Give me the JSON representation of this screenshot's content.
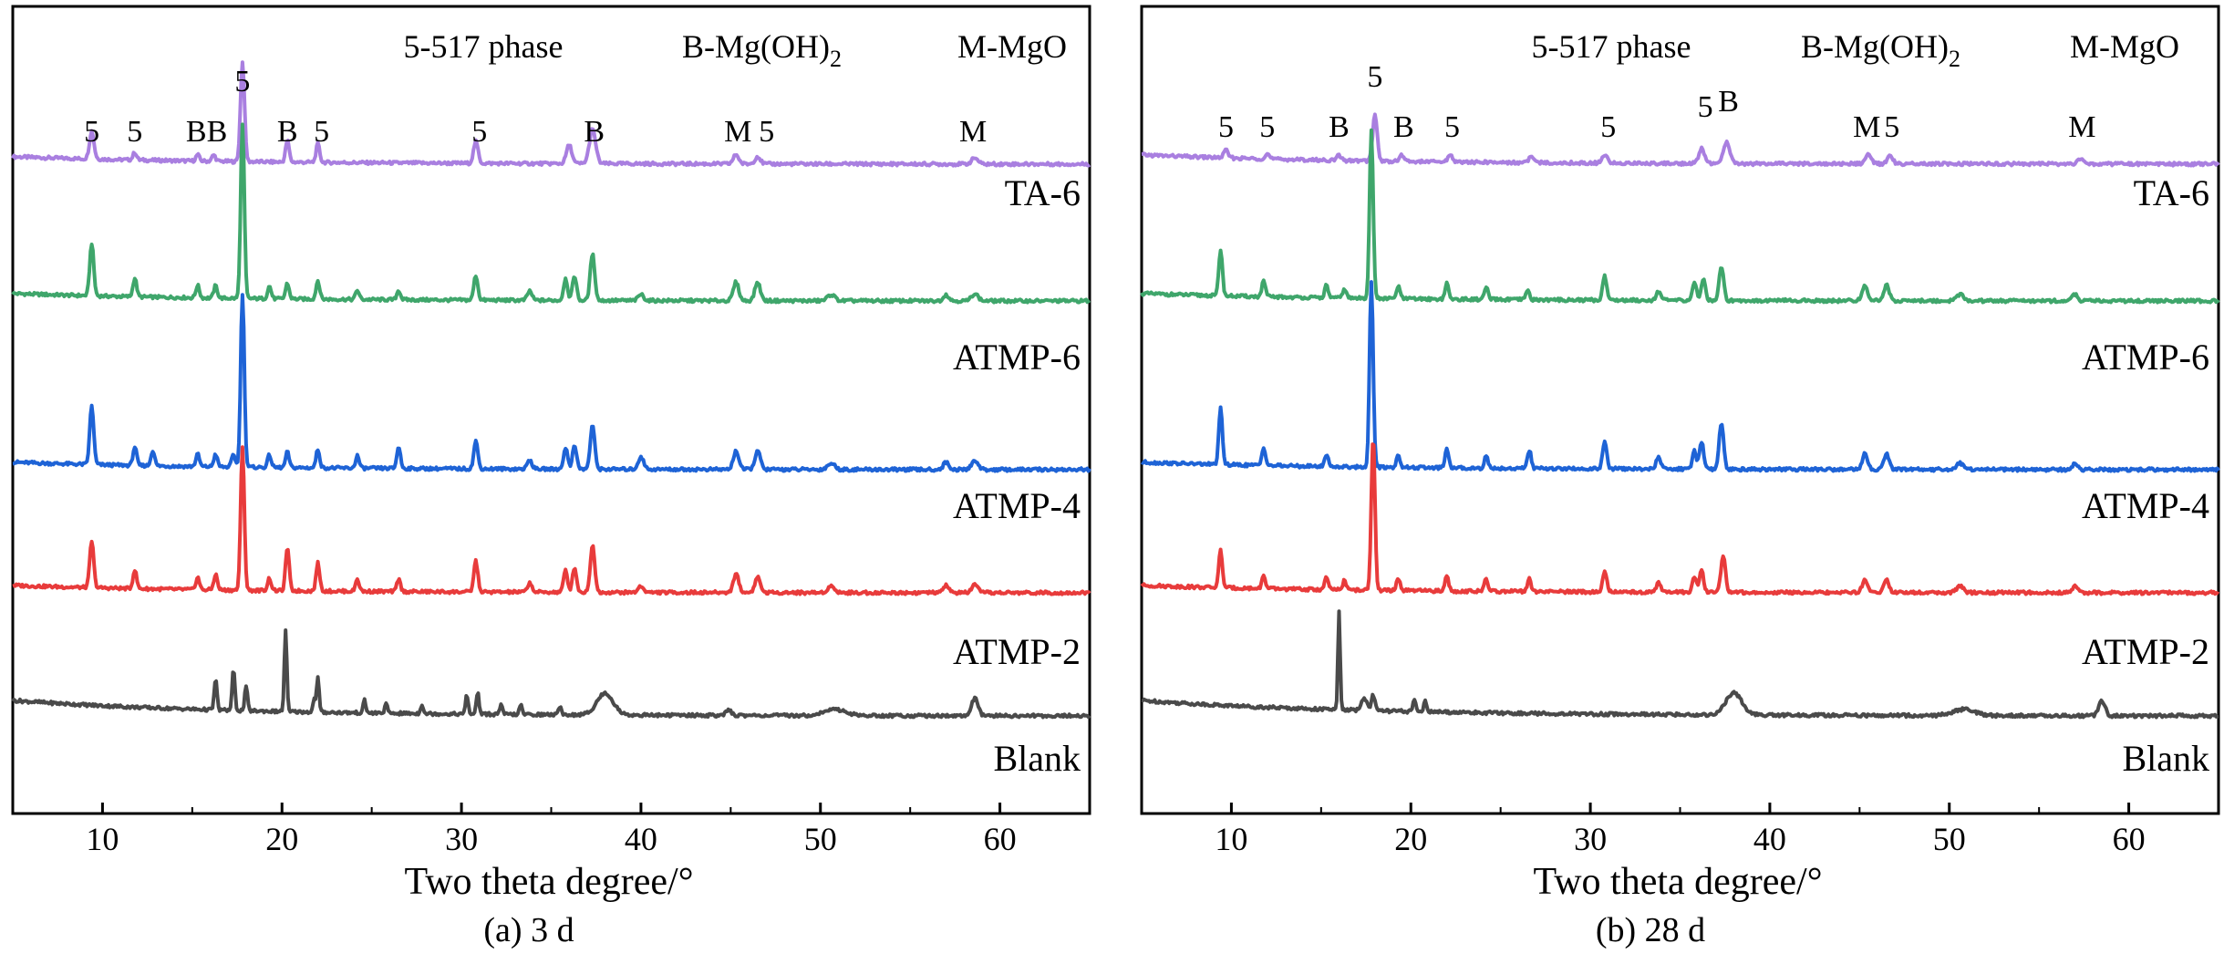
{
  "figure": {
    "panel_a_caption": "(a) 3 d",
    "panel_b_caption": "(b) 28 d",
    "xlabel": "Two theta degree/°",
    "legend": {
      "phase5": "5-517 phase",
      "brucite": "B-Mg(OH)",
      "brucite_sub": "2",
      "periclase": "M-MgO"
    }
  },
  "colors": {
    "TA-6": "#A97FE0",
    "ATMP-6": "#3FA66B",
    "ATMP-4": "#1E63D6",
    "ATMP-2": "#E83B3B",
    "Blank": "#4A4A4A"
  },
  "chart_data": [
    {
      "type": "line",
      "title": "(a) 3 d",
      "xlabel": "Two theta degree/°",
      "ylabel": "",
      "xlim": [
        5,
        65
      ],
      "xticks": [
        10,
        20,
        30,
        40,
        50,
        60
      ],
      "series": [
        {
          "name": "TA-6",
          "baseline": 4.2,
          "tilt": 0.12,
          "noise": 0.05,
          "peaks": [
            [
              9.4,
              0.45,
              0.25
            ],
            [
              11.8,
              0.12,
              0.2
            ],
            [
              15.3,
              0.1,
              0.2
            ],
            [
              16.2,
              0.1,
              0.2
            ],
            [
              17.8,
              1.6,
              0.22
            ],
            [
              20.3,
              0.35,
              0.2
            ],
            [
              22.0,
              0.3,
              0.2
            ],
            [
              30.8,
              0.35,
              0.25
            ],
            [
              36.0,
              0.3,
              0.3
            ],
            [
              37.3,
              0.55,
              0.35
            ],
            [
              45.3,
              0.15,
              0.3
            ],
            [
              46.5,
              0.12,
              0.3
            ],
            [
              58.6,
              0.1,
              0.35
            ]
          ]
        },
        {
          "name": "ATMP-6",
          "baseline": 3.05,
          "tilt": 0.12,
          "noise": 0.05,
          "peaks": [
            [
              9.4,
              0.85,
              0.22
            ],
            [
              11.8,
              0.3,
              0.2
            ],
            [
              15.3,
              0.2,
              0.2
            ],
            [
              16.3,
              0.2,
              0.2
            ],
            [
              17.8,
              2.8,
              0.2
            ],
            [
              19.3,
              0.2,
              0.2
            ],
            [
              20.3,
              0.25,
              0.2
            ],
            [
              22.0,
              0.3,
              0.2
            ],
            [
              24.2,
              0.15,
              0.2
            ],
            [
              26.5,
              0.15,
              0.2
            ],
            [
              30.8,
              0.4,
              0.22
            ],
            [
              33.8,
              0.15,
              0.25
            ],
            [
              35.8,
              0.35,
              0.22
            ],
            [
              36.3,
              0.4,
              0.22
            ],
            [
              37.3,
              0.75,
              0.25
            ],
            [
              40.0,
              0.1,
              0.3
            ],
            [
              45.3,
              0.3,
              0.3
            ],
            [
              46.5,
              0.3,
              0.3
            ],
            [
              50.6,
              0.1,
              0.4
            ],
            [
              57.0,
              0.1,
              0.3
            ],
            [
              58.6,
              0.12,
              0.35
            ]
          ]
        },
        {
          "name": "ATMP-4",
          "baseline": 1.95,
          "tilt": 0.12,
          "noise": 0.05,
          "peaks": [
            [
              9.4,
              0.95,
              0.22
            ],
            [
              11.8,
              0.3,
              0.2
            ],
            [
              12.8,
              0.25,
              0.2
            ],
            [
              15.3,
              0.2,
              0.2
            ],
            [
              16.3,
              0.2,
              0.2
            ],
            [
              17.3,
              0.2,
              0.2
            ],
            [
              17.8,
              2.8,
              0.2
            ],
            [
              19.3,
              0.2,
              0.2
            ],
            [
              20.3,
              0.25,
              0.2
            ],
            [
              22.0,
              0.3,
              0.2
            ],
            [
              24.2,
              0.2,
              0.2
            ],
            [
              26.5,
              0.35,
              0.2
            ],
            [
              30.8,
              0.45,
              0.22
            ],
            [
              33.8,
              0.15,
              0.25
            ],
            [
              35.8,
              0.35,
              0.22
            ],
            [
              36.3,
              0.4,
              0.22
            ],
            [
              37.3,
              0.7,
              0.25
            ],
            [
              40.0,
              0.2,
              0.3
            ],
            [
              45.3,
              0.3,
              0.3
            ],
            [
              46.5,
              0.3,
              0.3
            ],
            [
              50.6,
              0.1,
              0.4
            ],
            [
              57.0,
              0.12,
              0.3
            ],
            [
              58.6,
              0.15,
              0.35
            ]
          ]
        },
        {
          "name": "ATMP-2",
          "baseline": 0.85,
          "tilt": 0.12,
          "noise": 0.05,
          "peaks": [
            [
              9.4,
              0.75,
              0.22
            ],
            [
              11.8,
              0.3,
              0.2
            ],
            [
              15.3,
              0.2,
              0.2
            ],
            [
              16.3,
              0.25,
              0.2
            ],
            [
              17.8,
              2.3,
              0.2
            ],
            [
              19.3,
              0.2,
              0.2
            ],
            [
              20.3,
              0.7,
              0.2
            ],
            [
              22.0,
              0.45,
              0.2
            ],
            [
              24.2,
              0.2,
              0.2
            ],
            [
              26.5,
              0.2,
              0.2
            ],
            [
              30.8,
              0.5,
              0.22
            ],
            [
              33.8,
              0.15,
              0.25
            ],
            [
              35.8,
              0.35,
              0.22
            ],
            [
              36.3,
              0.4,
              0.22
            ],
            [
              37.3,
              0.75,
              0.25
            ],
            [
              40.0,
              0.1,
              0.3
            ],
            [
              45.3,
              0.3,
              0.3
            ],
            [
              46.5,
              0.25,
              0.3
            ],
            [
              50.6,
              0.1,
              0.4
            ],
            [
              57.0,
              0.12,
              0.3
            ],
            [
              58.6,
              0.12,
              0.35
            ]
          ]
        },
        {
          "name": "Blank",
          "baseline": -0.25,
          "tilt": 0.25,
          "noise": 0.05,
          "peaks": [
            [
              16.3,
              0.5,
              0.15
            ],
            [
              17.3,
              0.65,
              0.15
            ],
            [
              18.0,
              0.4,
              0.15
            ],
            [
              20.2,
              1.3,
              0.14
            ],
            [
              21.8,
              0.2,
              0.15
            ],
            [
              22.0,
              0.55,
              0.14
            ],
            [
              24.6,
              0.2,
              0.15
            ],
            [
              25.8,
              0.15,
              0.15
            ],
            [
              27.8,
              0.15,
              0.15
            ],
            [
              30.3,
              0.3,
              0.15
            ],
            [
              30.9,
              0.35,
              0.15
            ],
            [
              32.2,
              0.15,
              0.15
            ],
            [
              33.3,
              0.15,
              0.15
            ],
            [
              35.5,
              0.15,
              0.15
            ],
            [
              38.0,
              0.35,
              0.9
            ],
            [
              44.9,
              0.08,
              0.3
            ],
            [
              50.8,
              0.1,
              1.2
            ],
            [
              58.6,
              0.28,
              0.35
            ]
          ]
        }
      ],
      "trace_labels": [
        "TA-6",
        "ATMP-6",
        "ATMP-4",
        "ATMP-2",
        "Blank"
      ],
      "annotations": [
        {
          "text": "5",
          "x": 9.4
        },
        {
          "text": "5",
          "x": 11.8
        },
        {
          "text": "BB",
          "x": 15.8
        },
        {
          "text": "5",
          "x": 17.8
        },
        {
          "text": "B",
          "x": 20.3
        },
        {
          "text": "5",
          "x": 22.2
        },
        {
          "text": "5",
          "x": 31.0
        },
        {
          "text": "B",
          "x": 37.4
        },
        {
          "text": "M",
          "x": 45.4
        },
        {
          "text": "5",
          "x": 47.0
        },
        {
          "text": "M",
          "x": 58.5
        }
      ]
    },
    {
      "type": "line",
      "title": "(b) 28 d",
      "xlabel": "Two theta degree/°",
      "ylabel": "",
      "xlim": [
        5,
        65
      ],
      "xticks": [
        10,
        20,
        30,
        40,
        50,
        60
      ],
      "series": [
        {
          "name": "TA-6",
          "baseline": 4.3,
          "tilt": 0.15,
          "noise": 0.05,
          "peaks": [
            [
              9.7,
              0.12,
              0.25
            ],
            [
              12.0,
              0.08,
              0.25
            ],
            [
              16.0,
              0.08,
              0.25
            ],
            [
              18.0,
              0.75,
              0.25
            ],
            [
              19.5,
              0.1,
              0.25
            ],
            [
              22.2,
              0.12,
              0.25
            ],
            [
              26.7,
              0.1,
              0.25
            ],
            [
              30.8,
              0.12,
              0.3
            ],
            [
              36.2,
              0.25,
              0.3
            ],
            [
              37.6,
              0.35,
              0.35
            ],
            [
              45.5,
              0.15,
              0.3
            ],
            [
              46.7,
              0.15,
              0.3
            ],
            [
              57.3,
              0.08,
              0.3
            ]
          ]
        },
        {
          "name": "ATMP-6",
          "baseline": 3.1,
          "tilt": 0.12,
          "noise": 0.05,
          "peaks": [
            [
              9.4,
              0.75,
              0.2
            ],
            [
              11.8,
              0.25,
              0.2
            ],
            [
              15.3,
              0.2,
              0.2
            ],
            [
              16.3,
              0.15,
              0.2
            ],
            [
              17.8,
              2.7,
              0.2
            ],
            [
              19.3,
              0.2,
              0.2
            ],
            [
              22.0,
              0.25,
              0.2
            ],
            [
              24.2,
              0.2,
              0.2
            ],
            [
              26.5,
              0.15,
              0.2
            ],
            [
              30.8,
              0.4,
              0.22
            ],
            [
              33.8,
              0.15,
              0.25
            ],
            [
              35.8,
              0.3,
              0.22
            ],
            [
              36.3,
              0.35,
              0.22
            ],
            [
              37.3,
              0.55,
              0.25
            ],
            [
              45.3,
              0.25,
              0.3
            ],
            [
              46.5,
              0.25,
              0.3
            ],
            [
              50.6,
              0.1,
              0.4
            ],
            [
              57.0,
              0.1,
              0.3
            ]
          ]
        },
        {
          "name": "ATMP-4",
          "baseline": 2.0,
          "tilt": 0.12,
          "noise": 0.05,
          "peaks": [
            [
              9.4,
              0.9,
              0.2
            ],
            [
              11.8,
              0.3,
              0.2
            ],
            [
              15.3,
              0.2,
              0.2
            ],
            [
              17.8,
              3.0,
              0.2
            ],
            [
              19.3,
              0.2,
              0.2
            ],
            [
              22.0,
              0.3,
              0.2
            ],
            [
              24.2,
              0.2,
              0.2
            ],
            [
              26.6,
              0.3,
              0.2
            ],
            [
              30.8,
              0.45,
              0.22
            ],
            [
              33.8,
              0.2,
              0.25
            ],
            [
              35.8,
              0.3,
              0.22
            ],
            [
              36.2,
              0.45,
              0.22
            ],
            [
              37.3,
              0.75,
              0.25
            ],
            [
              45.3,
              0.25,
              0.3
            ],
            [
              46.5,
              0.25,
              0.3
            ],
            [
              50.6,
              0.1,
              0.4
            ],
            [
              57.0,
              0.1,
              0.3
            ]
          ]
        },
        {
          "name": "ATMP-2",
          "baseline": 0.9,
          "tilt": 0.12,
          "noise": 0.05,
          "peaks": [
            [
              9.4,
              0.6,
              0.2
            ],
            [
              11.8,
              0.2,
              0.2
            ],
            [
              15.3,
              0.2,
              0.2
            ],
            [
              16.3,
              0.15,
              0.2
            ],
            [
              17.9,
              2.5,
              0.2
            ],
            [
              19.3,
              0.2,
              0.2
            ],
            [
              22.0,
              0.25,
              0.2
            ],
            [
              24.2,
              0.2,
              0.2
            ],
            [
              26.6,
              0.2,
              0.2
            ],
            [
              30.8,
              0.35,
              0.22
            ],
            [
              33.8,
              0.15,
              0.25
            ],
            [
              35.8,
              0.25,
              0.22
            ],
            [
              36.2,
              0.35,
              0.22
            ],
            [
              37.4,
              0.6,
              0.25
            ],
            [
              45.3,
              0.2,
              0.3
            ],
            [
              46.5,
              0.2,
              0.3
            ],
            [
              50.6,
              0.1,
              0.4
            ],
            [
              57.0,
              0.1,
              0.3
            ]
          ]
        },
        {
          "name": "Blank",
          "baseline": -0.25,
          "tilt": 0.25,
          "noise": 0.05,
          "peaks": [
            [
              16.0,
              1.6,
              0.12
            ],
            [
              17.4,
              0.2,
              0.3
            ],
            [
              17.9,
              0.25,
              0.2
            ],
            [
              20.2,
              0.2,
              0.15
            ],
            [
              20.8,
              0.2,
              0.15
            ],
            [
              38.0,
              0.35,
              0.9
            ],
            [
              50.8,
              0.1,
              1.2
            ],
            [
              58.5,
              0.25,
              0.35
            ]
          ]
        }
      ],
      "trace_labels": [
        "TA-6",
        "ATMP-6",
        "ATMP-4",
        "ATMP-2",
        "Blank"
      ],
      "annotations": [
        {
          "text": "5",
          "x": 9.7
        },
        {
          "text": "5",
          "x": 12.0
        },
        {
          "text": "B",
          "x": 16.0
        },
        {
          "text": "5",
          "x": 18.0
        },
        {
          "text": "B",
          "x": 19.6
        },
        {
          "text": "5",
          "x": 22.3
        },
        {
          "text": "5",
          "x": 31.0
        },
        {
          "text": "5",
          "x": 36.4
        },
        {
          "text": "B",
          "x": 37.7
        },
        {
          "text": "M",
          "x": 45.4
        },
        {
          "text": "5",
          "x": 46.8
        },
        {
          "text": "M",
          "x": 57.4
        }
      ]
    }
  ]
}
